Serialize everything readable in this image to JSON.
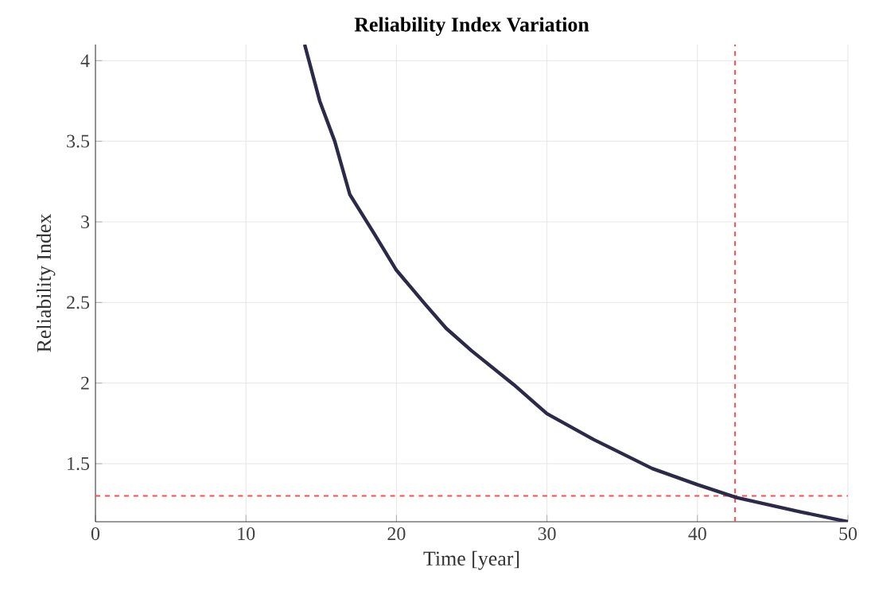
{
  "chart_data": {
    "type": "line",
    "title": "Reliability Index Variation",
    "xlabel": "Time [year]",
    "ylabel": "Reliability Index",
    "x": [
      13.9,
      14.9,
      15.9,
      16.9,
      18.5,
      20.0,
      21.9,
      23.3,
      25.0,
      27.8,
      30.0,
      33.1,
      37.0,
      40.0,
      42.6,
      46.9,
      50.0
    ],
    "series": [
      {
        "color": "#2b2a48",
        "values": [
          4.1,
          3.75,
          3.5,
          3.17,
          2.93,
          2.7,
          2.49,
          2.34,
          2.2,
          1.99,
          1.81,
          1.65,
          1.47,
          1.37,
          1.29,
          1.2,
          1.14
        ]
      }
    ],
    "xlim": [
      0,
      50
    ],
    "ylim": [
      1.14,
      4.1
    ],
    "xticks": [
      0,
      10,
      20,
      30,
      40,
      50
    ],
    "yticks": [
      1.5,
      2,
      2.5,
      3,
      3.5,
      4
    ],
    "grid": true,
    "line_style": "solid",
    "ref_lines": [
      {
        "axis": "y",
        "value": 1.3,
        "color": "#ff4d4d",
        "line_style": "dashed"
      },
      {
        "axis": "x",
        "value": 42.5,
        "color": "#ff4d4d",
        "line_style": "dashed"
      }
    ]
  }
}
